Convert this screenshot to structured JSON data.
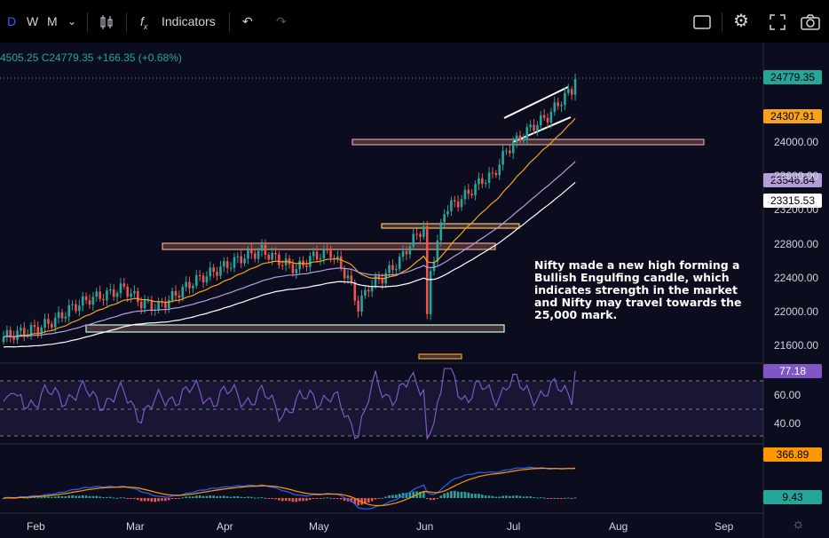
{
  "toolbar": {
    "interval_d": "D",
    "interval_w": "W",
    "interval_m": "M",
    "indicators_label": "Indicators"
  },
  "legend": {
    "ohlc_text": "4505.25  C24779.35  +166.35 (+0.68%)"
  },
  "price_labels": {
    "last": "24779.35",
    "ema_fast": "24307.91",
    "ema_mid": "23546.84",
    "ema_slow": "23315.53",
    "rsi": "77.18",
    "macd": "366.89",
    "hist": "9.43"
  },
  "colors": {
    "up": "#26a69a",
    "down": "#ef5350",
    "ema_fast": "#f7a21b",
    "ema_mid": "#b39ddb",
    "ema_slow": "#ffffff",
    "rsi_line": "#7e57c2",
    "macd_line": "#2962ff",
    "signal_line": "#ff9800",
    "background": "#0b0d1e"
  },
  "annotation": {
    "text": "Nifty made a new high forming a Bullish Engulfing candle, which indicates strength in the market and Nifty may travel towards the 25,000 mark."
  },
  "chart_data": {
    "type": "line",
    "price_axis": [
      {
        "v": 24000,
        "label": "24000.00"
      },
      {
        "v": 23600,
        "label": "23600.00"
      },
      {
        "v": 23200,
        "label": "23200.00"
      },
      {
        "v": 22800,
        "label": "22800.00"
      },
      {
        "v": 22400,
        "label": "22400.00"
      },
      {
        "v": 22000,
        "label": "22000.00"
      },
      {
        "v": 21600,
        "label": "21600.00"
      }
    ],
    "rsi_axis": [
      {
        "v": 60,
        "label": "60.00"
      },
      {
        "v": 40,
        "label": "40.00"
      }
    ],
    "x_labels": [
      "Feb",
      "Mar",
      "Apr",
      "May",
      "Jun",
      "Jul",
      "Aug",
      "Sep"
    ],
    "close_series": [
      [
        0,
        21700
      ],
      [
        5,
        21750
      ],
      [
        10,
        21800
      ],
      [
        15,
        21900
      ],
      [
        20,
        22050
      ],
      [
        25,
        22150
      ],
      [
        30,
        22200
      ],
      [
        35,
        22280
      ],
      [
        40,
        22100
      ],
      [
        45,
        22050
      ],
      [
        50,
        22200
      ],
      [
        55,
        22350
      ],
      [
        60,
        22450
      ],
      [
        65,
        22550
      ],
      [
        70,
        22650
      ],
      [
        75,
        22720
      ],
      [
        80,
        22600
      ],
      [
        85,
        22500
      ],
      [
        90,
        22650
      ],
      [
        95,
        22700
      ],
      [
        100,
        22400
      ],
      [
        103,
        22050
      ],
      [
        106,
        22300
      ],
      [
        110,
        22400
      ],
      [
        115,
        22600
      ],
      [
        118,
        22800
      ],
      [
        122,
        23000
      ],
      [
        123,
        21900
      ],
      [
        124,
        22500
      ],
      [
        126,
        22800
      ],
      [
        128,
        23200
      ],
      [
        132,
        23300
      ],
      [
        135,
        23400
      ],
      [
        139,
        23550
      ],
      [
        142,
        23600
      ],
      [
        146,
        23900
      ],
      [
        150,
        24050
      ],
      [
        154,
        24200
      ],
      [
        158,
        24300
      ],
      [
        162,
        24500
      ],
      [
        165,
        24613
      ],
      [
        166,
        24779.35
      ]
    ],
    "ema_fast_last": 24307.91,
    "ema_mid_last": 23546.84,
    "ema_slow_last": 23315.53,
    "rsi_last": 77.18,
    "macd_last": 366.89,
    "hist_last": 9.43
  }
}
